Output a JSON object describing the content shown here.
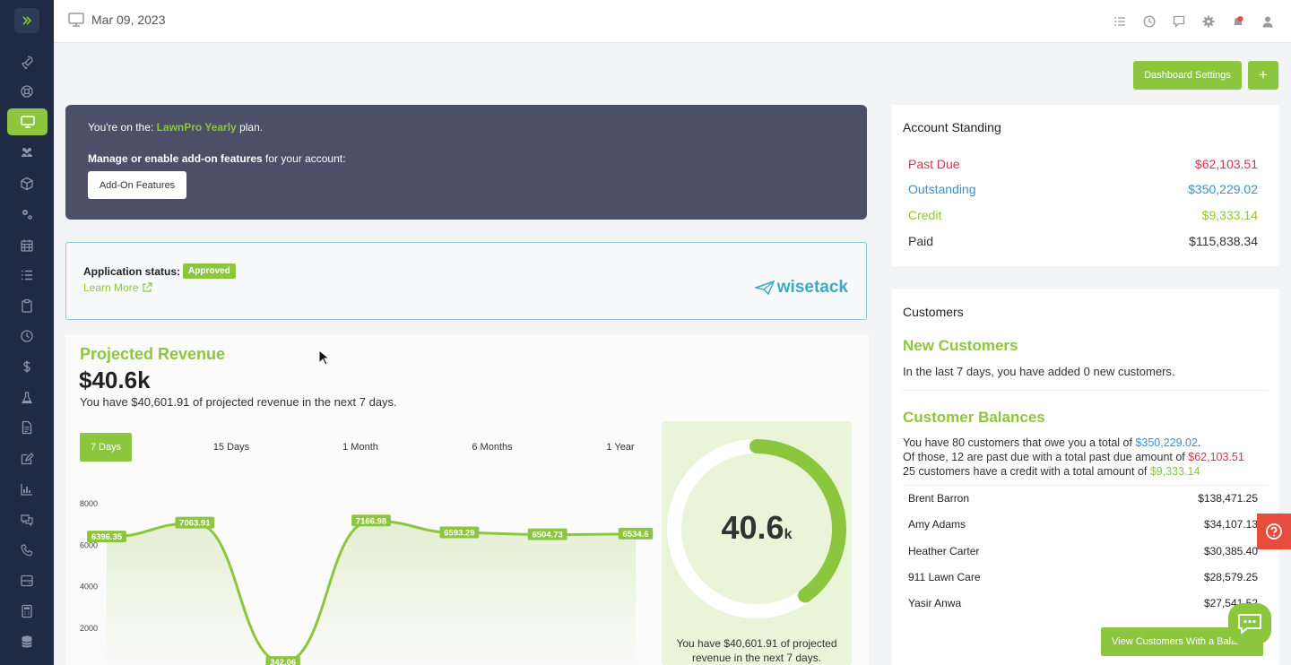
{
  "header": {
    "date": "Mar 09, 2023",
    "icons": [
      "checklist-icon",
      "clock-icon",
      "message-icon",
      "gear-icon",
      "bell-icon",
      "user-icon"
    ]
  },
  "sidebar": {
    "items": [
      "rocket-icon",
      "lifebuoy-icon",
      "monitor-icon",
      "users-icon",
      "box-icon",
      "cogs-icon",
      "calendar-icon",
      "list-icon",
      "clipboard-icon",
      "clock-icon",
      "dollar-icon",
      "flask-icon",
      "document-icon",
      "edit-icon",
      "bar-chart-icon",
      "chat-icon",
      "phone-icon",
      "drive-icon",
      "calculator-icon",
      "database-icon"
    ],
    "active_index": 2
  },
  "toolbar": {
    "dashboard_settings": "Dashboard Settings",
    "add_label": "+"
  },
  "plan": {
    "prefix": "You're on the: ",
    "plan_name": "LawnPro Yearly",
    "suffix": " plan.",
    "manage_bold": "Manage or enable add-on features",
    "manage_rest": " for your account:",
    "addon_button": "Add-On Features"
  },
  "application": {
    "status_label": "Application status:",
    "status_value": "Approved",
    "learn_more": "Learn More",
    "brand": "wisetack"
  },
  "revenue": {
    "title": "Projected Revenue",
    "amount": "$40.6k",
    "description": "You have $40,601.91 of projected revenue in the next 7 days.",
    "ranges": [
      "7 Days",
      "15 Days",
      "1 Month",
      "6 Months",
      "1 Year"
    ],
    "active_range": 0,
    "gauge_value": "40.6",
    "gauge_unit": "k",
    "gauge_fraction": 0.4,
    "gauge_desc": "You have $40,601.91 of projected revenue in the next 7 days."
  },
  "chart_data": {
    "type": "line",
    "y_ticks": [
      "8000",
      "6000",
      "4000",
      "2000"
    ],
    "ylim": [
      0,
      8000
    ],
    "values": [
      6396.35,
      7063.91,
      342.06,
      7166.98,
      6593.29,
      6504.73,
      6534.6
    ],
    "labels": [
      "6396.35",
      "7063.91",
      "342.06",
      "7166.98",
      "6593.29",
      "6504.73",
      "6534.6"
    ],
    "line_color": "#8cc63f"
  },
  "account": {
    "title": "Account Standing",
    "rows": [
      {
        "label": "Past Due",
        "value": "$62,103.51",
        "color": "#d0374b"
      },
      {
        "label": "Outstanding",
        "value": "$350,229.02",
        "color": "#3b8fd1"
      },
      {
        "label": "Credit",
        "value": "$9,333.14",
        "color": "#8cc63f"
      },
      {
        "label": "Paid",
        "value": "$115,838.34",
        "color": "#333333"
      }
    ]
  },
  "customers": {
    "title": "Customers",
    "new_title": "New Customers",
    "new_text": "In the last 7 days, you have added 0 new customers.",
    "balances_title": "Customer Balances",
    "line1_pre": "You have 80 customers that owe you a total of ",
    "line1_val": "$350,229.02",
    "line1_post": ".",
    "line2_pre": "Of those, 12 are past due with a total past due amount of ",
    "line2_val": "$62,103.51",
    "line3_pre": "25 customers have a credit with a total amount of ",
    "line3_val": "$9,333.14",
    "list": [
      {
        "name": "Brent Barron",
        "amount": "$138,471.25"
      },
      {
        "name": "Amy Adams",
        "amount": "$34,107.13"
      },
      {
        "name": "Heather Carter",
        "amount": "$30,385.40"
      },
      {
        "name": "911 Lawn Care",
        "amount": "$28,579.25"
      },
      {
        "name": "Yasir Anwa",
        "amount": "$27,541.52"
      }
    ],
    "view_button": "View Customers With a Balance"
  }
}
